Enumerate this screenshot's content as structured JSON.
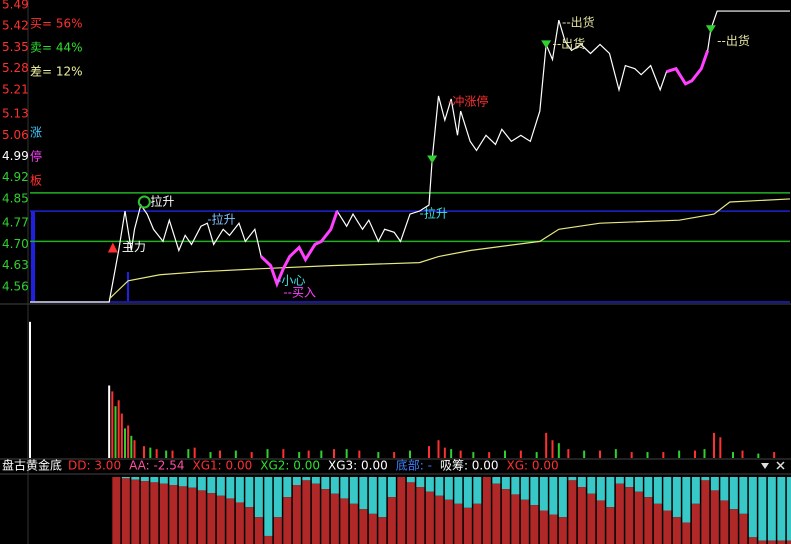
{
  "chart_data": [
    {
      "type": "line",
      "stats": [
        {
          "text": "买= 56%",
          "color": "#ff3030"
        },
        {
          "text": "卖= 44%",
          "color": "#30e030"
        },
        {
          "text": "差= 12%",
          "color": "#f0f0a0"
        }
      ],
      "side_labels": [
        {
          "text": "涨",
          "color": "#40c8ff"
        },
        {
          "text": "停",
          "color": "#ff40ff"
        },
        {
          "text": "板",
          "color": "#ff3030"
        }
      ],
      "xlim": [
        0,
        240
      ],
      "ylim": [
        4.51,
        5.49
      ],
      "yticks": [
        5.49,
        5.42,
        5.35,
        5.28,
        5.21,
        5.13,
        5.06,
        4.99,
        4.92,
        4.85,
        4.77,
        {
          "value": 4.7,
          "label": "4.70"
        },
        4.63,
        4.56
      ],
      "ytick_colors": [
        "#ff3030",
        "#ff3030",
        "#ff3030",
        "#ff3030",
        "#ff3030",
        "#ff3030",
        "#ff3030",
        "#ffffff",
        "#30d030",
        "#30d030",
        "#30d030",
        "#30d030",
        "#30d030",
        "#30d030"
      ],
      "reference_lines": [
        {
          "value": 4.87,
          "color": "#22b022"
        },
        {
          "value": 4.71,
          "color": "#22b022"
        },
        {
          "value": 4.81,
          "color": "#2020d0"
        },
        {
          "value": 4.51,
          "color": "#2020d0"
        }
      ],
      "series": [
        {
          "color": "#ffffff",
          "x": [
            0,
            25,
            28,
            30,
            32,
            33,
            35,
            37,
            39,
            42,
            44,
            47,
            49,
            51,
            54,
            56,
            58,
            61,
            63,
            66,
            68,
            71,
            73,
            76,
            78,
            80,
            82,
            85,
            87,
            90,
            92,
            95,
            97,
            100,
            102,
            105,
            107,
            110,
            112,
            115,
            117,
            120,
            123,
            126,
            127,
            129,
            131,
            133,
            135,
            136,
            139,
            141,
            144,
            147,
            149,
            152,
            155,
            158,
            161,
            163,
            165,
            167,
            169,
            171,
            174,
            177,
            180,
            183,
            186,
            188,
            191,
            193,
            196,
            199,
            201,
            204,
            207,
            209,
            212,
            214,
            215,
            217,
            240
          ],
          "values": [
            4.51,
            4.51,
            4.68,
            4.81,
            4.68,
            4.75,
            4.83,
            4.8,
            4.75,
            4.71,
            4.78,
            4.68,
            4.73,
            4.7,
            4.76,
            4.77,
            4.7,
            4.75,
            4.73,
            4.77,
            4.71,
            4.75,
            4.66,
            4.63,
            4.57,
            4.62,
            4.66,
            4.69,
            4.65,
            4.7,
            4.71,
            4.75,
            4.81,
            4.76,
            4.8,
            4.75,
            4.78,
            4.71,
            4.75,
            4.74,
            4.71,
            4.8,
            4.81,
            4.83,
            4.98,
            5.19,
            5.11,
            5.18,
            5.06,
            5.14,
            5.04,
            5.01,
            5.06,
            5.03,
            5.08,
            5.04,
            5.06,
            5.04,
            5.14,
            5.36,
            5.31,
            5.44,
            5.37,
            5.34,
            5.36,
            5.33,
            5.36,
            5.33,
            5.21,
            5.29,
            5.28,
            5.26,
            5.29,
            5.21,
            5.27,
            5.28,
            5.23,
            5.24,
            5.28,
            5.34,
            5.41,
            5.47,
            5.47
          ]
        },
        {
          "color": "#e8e880",
          "x": [
            25,
            28,
            31,
            41,
            54,
            73,
            95,
            123,
            129,
            139,
            161,
            167,
            180,
            205,
            216,
            221,
            240
          ],
          "values": [
            4.52,
            4.55,
            4.58,
            4.6,
            4.61,
            4.62,
            4.63,
            4.64,
            4.66,
            4.68,
            4.71,
            4.75,
            4.77,
            4.78,
            4.8,
            4.84,
            4.85
          ]
        }
      ],
      "highlight": {
        "color": "#ff40ff",
        "ranges": [
          [
            73,
            97
          ],
          [
            201,
            214
          ]
        ]
      },
      "annotations": [
        {
          "text": "主力",
          "x": 29,
          "y": 4.69,
          "color": "#ffffff",
          "marker": "triangle",
          "marker_color": "#ff3030"
        },
        {
          "text": "拉升",
          "x": 38,
          "y": 4.84,
          "color": "#ffffff",
          "marker": "circle",
          "marker_color": "#30c030"
        },
        {
          "text": "-拉升",
          "x": 56,
          "y": 4.78,
          "color": "#80c0ff"
        },
        {
          "text": "-小心",
          "x": 78,
          "y": 4.58,
          "color": "#40e0e0"
        },
        {
          "text": "--买入",
          "x": 80,
          "y": 4.54,
          "color": "#ff40ff"
        },
        {
          "text": "-拉升",
          "x": 123,
          "y": 4.8,
          "color": "#40e0e0"
        },
        {
          "text": "-冲涨停",
          "x": 132,
          "y": 5.17,
          "color": "#ff3030"
        },
        {
          "text": "--出货",
          "x": 168,
          "y": 5.43,
          "color": "#e0e0a0"
        },
        {
          "text": "--出货",
          "x": 165,
          "y": 5.36,
          "color": "#e0e0a0"
        },
        {
          "text": "--出货",
          "x": 217,
          "y": 5.37,
          "color": "#e0e0a0"
        }
      ],
      "markers": [
        {
          "x": 127,
          "y": 4.98,
          "color": "#30d030"
        },
        {
          "x": 163,
          "y": 5.36,
          "color": "#30d030"
        },
        {
          "x": 215,
          "y": 5.41,
          "color": "#30d030"
        }
      ]
    },
    {
      "type": "bar",
      "xlim": [
        0,
        240
      ],
      "ylim": [
        0,
        100
      ],
      "series": [
        {
          "color": "#ffffff",
          "x": [
            0,
            25
          ],
          "values": [
            92,
            49
          ]
        },
        {
          "color": "#ff3030",
          "x": [
            26,
            28,
            29,
            31,
            33,
            36,
            40,
            45,
            52,
            60,
            70,
            80,
            88,
            96,
            104,
            115,
            126,
            129,
            131,
            136,
            145,
            155,
            163,
            165,
            170,
            180,
            190,
            200,
            210,
            216,
            218,
            225,
            235
          ],
          "values": [
            45,
            39,
            30,
            22,
            12,
            8,
            6,
            5,
            7,
            5,
            4,
            6,
            5,
            6,
            5,
            4,
            8,
            12,
            7,
            5,
            4,
            5,
            17,
            12,
            6,
            5,
            4,
            4,
            5,
            17,
            14,
            5,
            4
          ]
        },
        {
          "color": "#30d030",
          "x": [
            27,
            30,
            32,
            38,
            43,
            50,
            57,
            65,
            75,
            85,
            92,
            100,
            110,
            120,
            133,
            140,
            150,
            160,
            167,
            175,
            185,
            195,
            205,
            213,
            222,
            230
          ],
          "values": [
            35,
            20,
            15,
            7,
            5,
            6,
            4,
            5,
            6,
            4,
            5,
            6,
            4,
            5,
            6,
            4,
            5,
            4,
            10,
            5,
            6,
            4,
            5,
            6,
            4,
            3
          ]
        }
      ]
    },
    {
      "type": "split-bar",
      "title": "盘古黄金底",
      "readouts": [
        {
          "text": "DD: 3.00",
          "color": "#ff3030"
        },
        {
          "text": "AA: -2.54",
          "color": "#ff50a0"
        },
        {
          "text": "XG1: 0.00",
          "color": "#ff3030"
        },
        {
          "text": "XG2: 0.00",
          "color": "#30e030"
        },
        {
          "text": "XG3: 0.00",
          "color": "#ffffff"
        },
        {
          "text": "底部: -",
          "color": "#4080ff"
        },
        {
          "text": "吸筹: 0.00",
          "color": "#ffffff"
        },
        {
          "text": "XG: 0.00",
          "color": "#ff3030"
        }
      ],
      "xlim": [
        0,
        240
      ],
      "ylim": [
        0,
        100
      ],
      "fill_color": "#b02828",
      "rest_color": "#38c8c8",
      "x": [
        26,
        29,
        32,
        35,
        38,
        41,
        44,
        47,
        50,
        53,
        56,
        59,
        62,
        65,
        68,
        71,
        74,
        77,
        80,
        83,
        86,
        89,
        92,
        95,
        98,
        101,
        104,
        107,
        110,
        113,
        116,
        119,
        122,
        125,
        128,
        131,
        134,
        137,
        140,
        143,
        146,
        149,
        152,
        155,
        158,
        161,
        164,
        167,
        170,
        173,
        176,
        179,
        182,
        185,
        188,
        191,
        194,
        197,
        200,
        203,
        206,
        209,
        212,
        215,
        218,
        221,
        224,
        227,
        230,
        233,
        236,
        239
      ],
      "values": [
        100,
        98,
        96,
        94,
        92,
        90,
        88,
        86,
        84,
        80,
        76,
        72,
        68,
        62,
        55,
        40,
        12,
        40,
        70,
        88,
        95,
        90,
        82,
        75,
        68,
        60,
        52,
        45,
        40,
        70,
        100,
        92,
        85,
        78,
        72,
        66,
        60,
        54,
        60,
        100,
        90,
        82,
        74,
        66,
        58,
        50,
        44,
        40,
        95,
        85,
        75,
        65,
        55,
        90,
        85,
        78,
        70,
        60,
        50,
        40,
        32,
        60,
        95,
        80,
        65,
        52,
        45,
        10,
        5,
        5,
        5,
        5
      ]
    }
  ]
}
